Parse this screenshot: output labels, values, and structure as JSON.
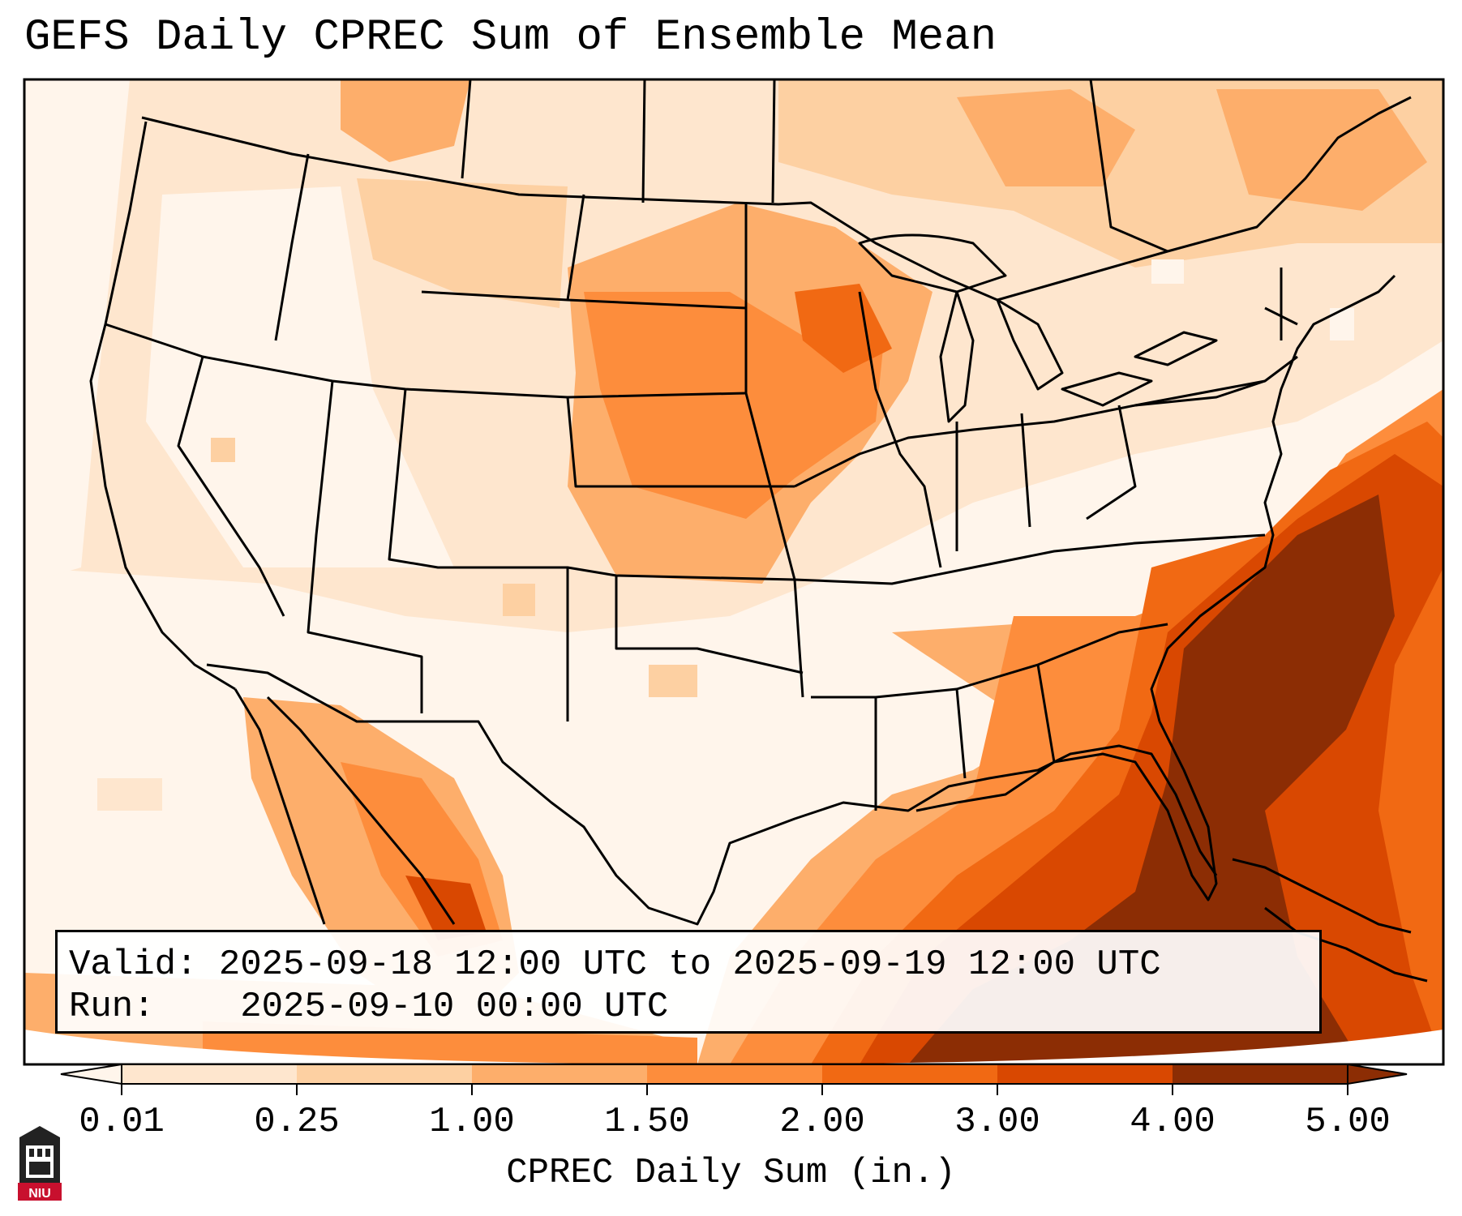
{
  "title": "GEFS Daily CPREC Sum of Ensemble Mean",
  "info": {
    "valid_label": "Valid:",
    "valid_value": "2025-09-18 12:00 UTC to 2025-09-19 12:00 UTC",
    "run_label": "Run:",
    "run_value": "2025-09-10 00:00 UTC"
  },
  "colorbar": {
    "label": "CPREC Daily Sum (in.)",
    "ticks": [
      "0.01",
      "0.25",
      "1.00",
      "1.50",
      "2.00",
      "3.00",
      "4.00",
      "5.00"
    ],
    "colors": [
      "#fff5eb",
      "#fee6ce",
      "#fdd0a2",
      "#fdae6b",
      "#fd8d3c",
      "#f16913",
      "#d94801",
      "#8c2d04"
    ],
    "extend": "both"
  },
  "logo": {
    "text": "NIU",
    "icon": "niu-university-logo"
  }
}
